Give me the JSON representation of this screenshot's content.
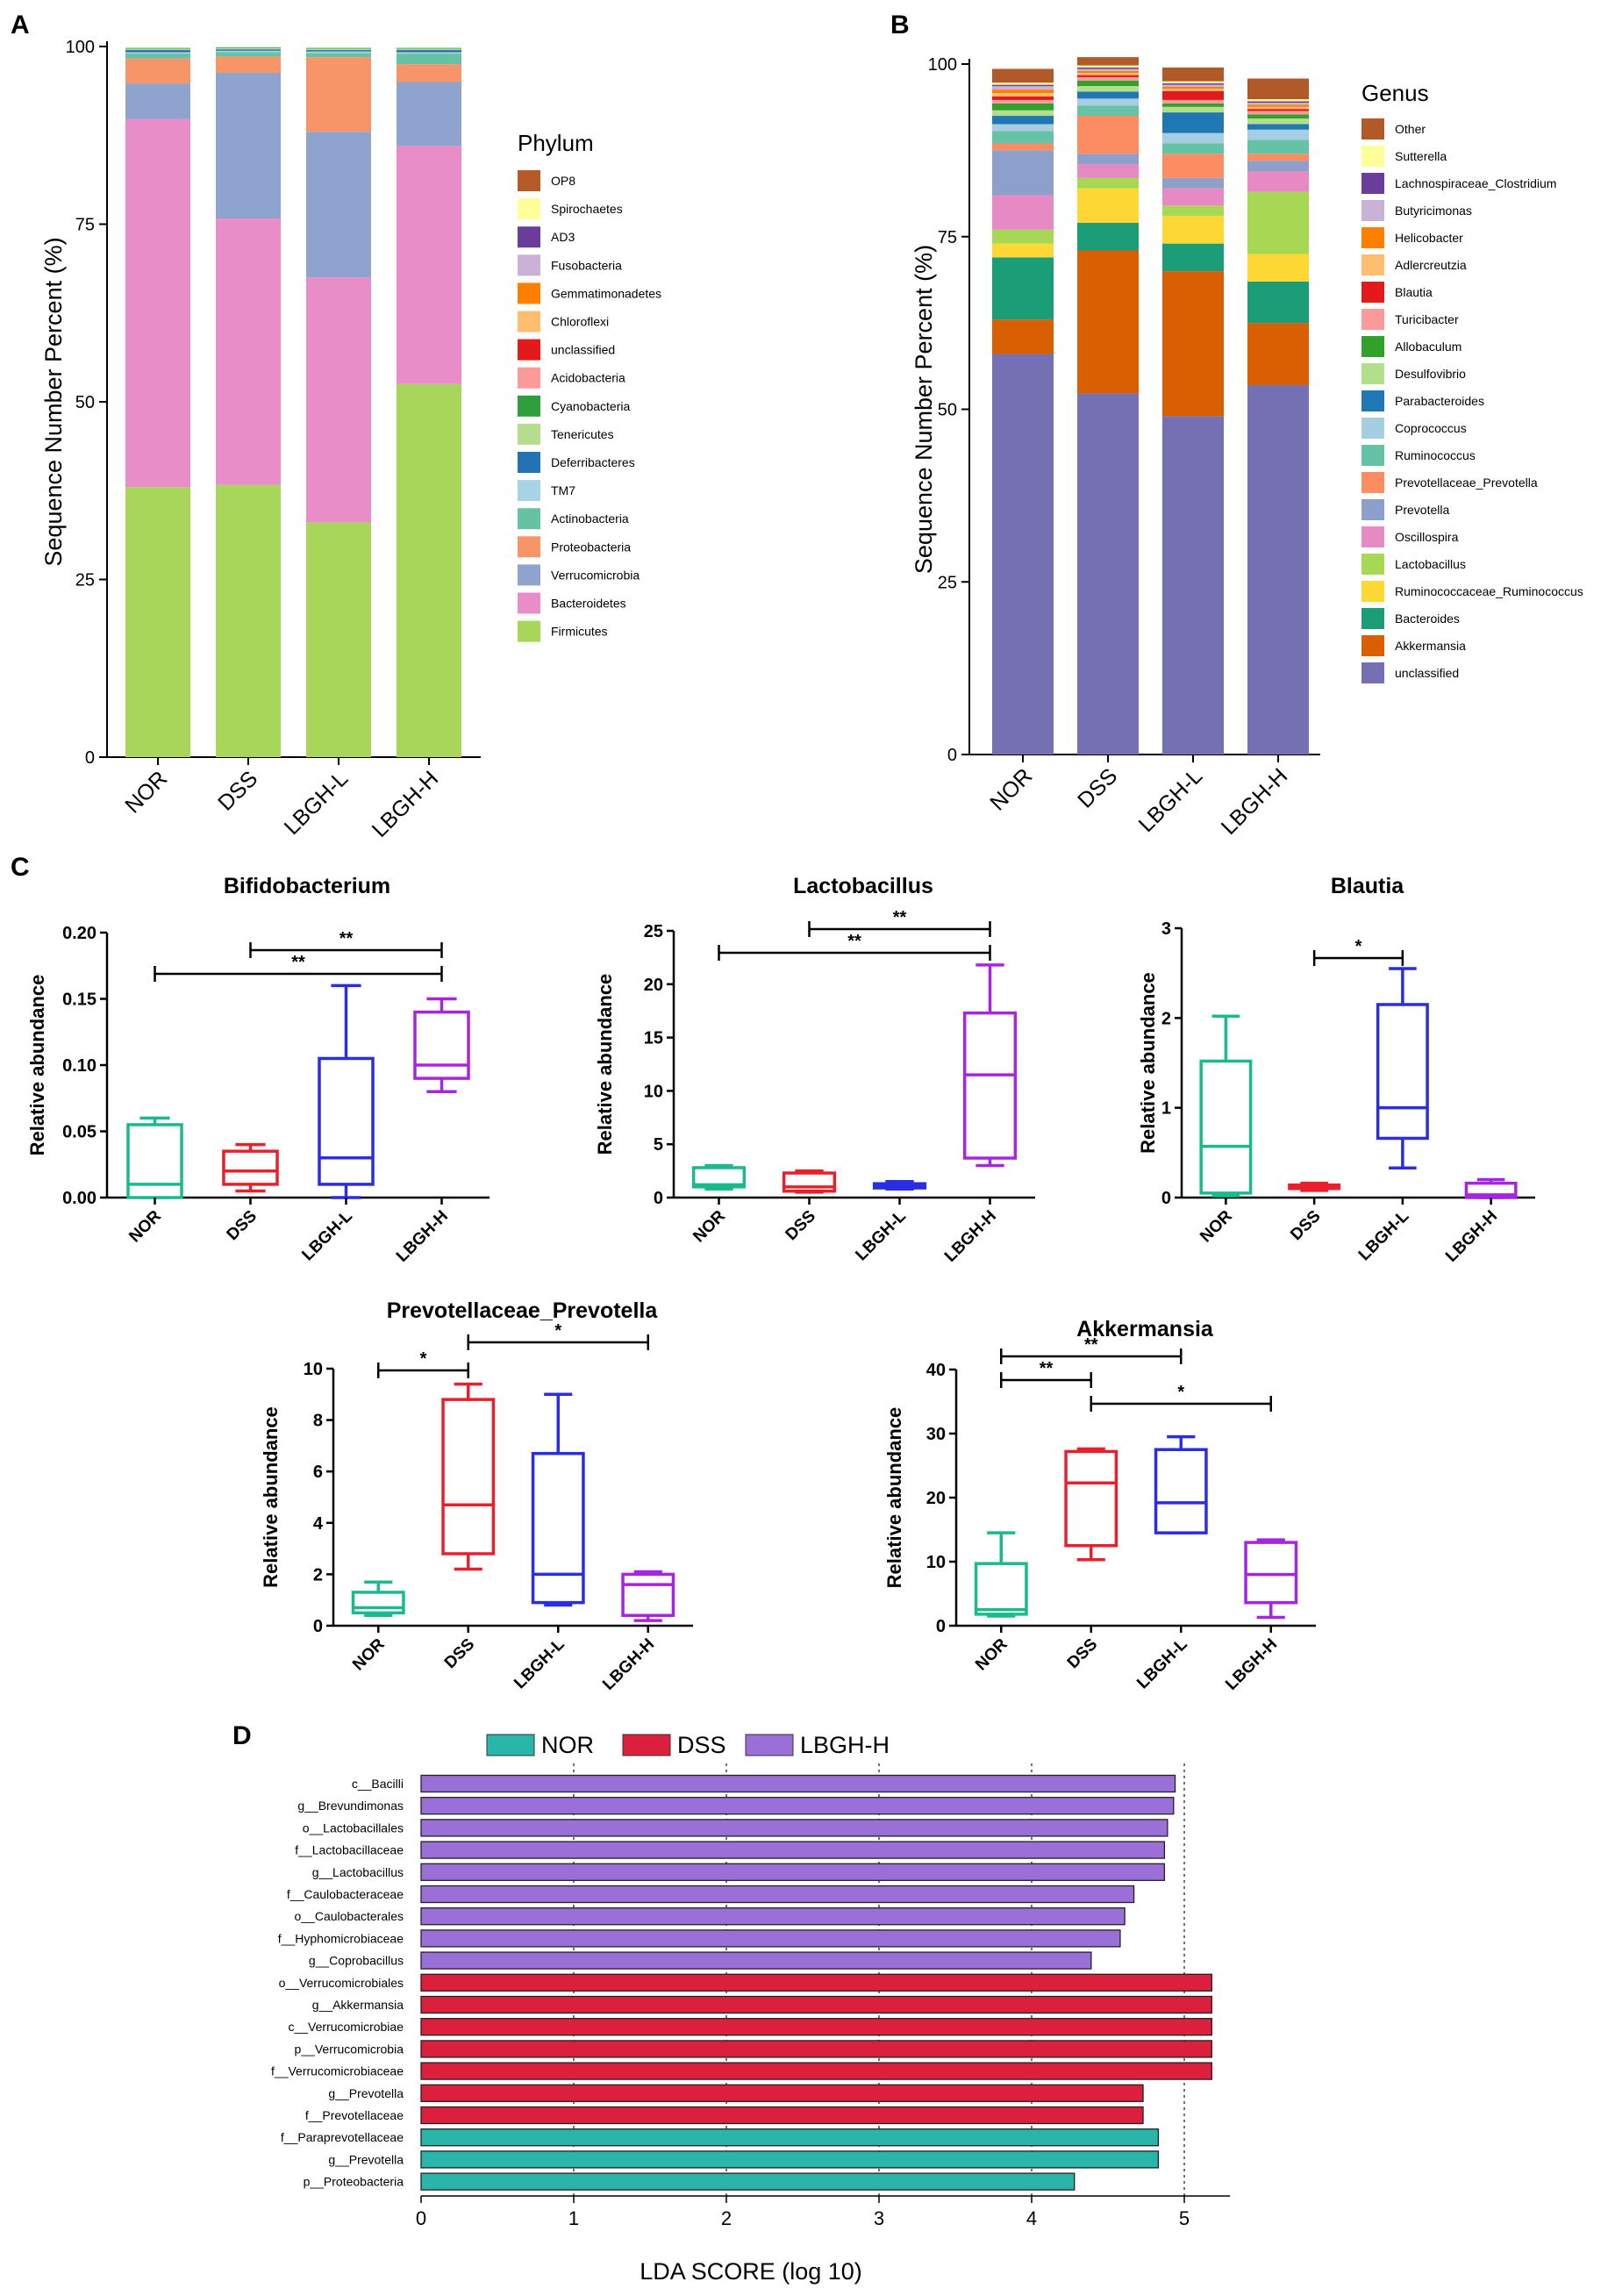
{
  "figure": {
    "panel_labels": [
      "A",
      "B",
      "C",
      "D"
    ]
  },
  "chart_data": [
    {
      "panel": "A",
      "type": "bar",
      "stacked": true,
      "categories": [
        "NOR",
        "DSS",
        "LBGH-L",
        "LBGH-H"
      ],
      "ylabel": "Sequence Number Percent (%)",
      "ylim": [
        0,
        100
      ],
      "yticks": [
        0,
        25,
        50,
        75,
        100
      ],
      "legend_title": "Phylum",
      "legend": [
        "OP8",
        "Spirochaetes",
        "AD3",
        "Fusobacteria",
        "Gemmatimonadetes",
        "Chloroflexi",
        "unclassified",
        "Acidobacteria",
        "Cyanobacteria",
        "Tenericutes",
        "Deferribacteres",
        "TM7",
        "Actinobacteria",
        "Proteobacteria",
        "Verrucomicrobia",
        "Bacteroidetes",
        "Firmicutes"
      ],
      "series": [
        {
          "name": "Firmicutes",
          "color": "#a8d65b",
          "values": [
            38,
            38.3,
            33,
            52.5
          ]
        },
        {
          "name": "Bacteroidetes",
          "color": "#e98dc8",
          "values": [
            51.8,
            37.5,
            34.5,
            33.5
          ]
        },
        {
          "name": "Verrucomicrobia",
          "color": "#8fa3cf",
          "values": [
            5,
            20.5,
            20.5,
            9
          ]
        },
        {
          "name": "Proteobacteria",
          "color": "#f79468",
          "values": [
            3.5,
            2.3,
            10.5,
            2.5
          ]
        },
        {
          "name": "Actinobacteria",
          "color": "#67c2a4",
          "values": [
            0.7,
            0.6,
            0.6,
            1.5
          ]
        },
        {
          "name": "TM7",
          "color": "#a8d3e6",
          "values": [
            0.2,
            0.2,
            0.2,
            0.2
          ]
        },
        {
          "name": "Deferribacteres",
          "color": "#2372b4",
          "values": [
            0.3,
            0.2,
            0.2,
            0.3
          ]
        },
        {
          "name": "Tenericutes",
          "color": "#b5dc8f",
          "values": [
            0.2,
            0.2,
            0.2,
            0.2
          ]
        },
        {
          "name": "Cyanobacteria",
          "color": "#2e9e3f",
          "values": [
            0.1,
            0.1,
            0.1,
            0.1
          ]
        }
      ]
    },
    {
      "panel": "B",
      "type": "bar",
      "stacked": true,
      "categories": [
        "NOR",
        "DSS",
        "LBGH-L",
        "LBGH-H"
      ],
      "ylabel": "Sequence Number Percent (%)",
      "ylim": [
        0,
        100
      ],
      "yticks": [
        0,
        25,
        50,
        75,
        100
      ],
      "legend_title": "Genus",
      "legend": [
        "Other",
        "Sutterella",
        "Lachnospiraceae_Clostridium",
        "Butyricimonas",
        "Helicobacter",
        "Adlercreutzia",
        "Blautia",
        "Turicibacter",
        "Allobaculum",
        "Desulfovibrio",
        "Parabacteroides",
        "Coprococcus",
        "Ruminococcus",
        "Prevotellaceae_Prevotella",
        "Prevotella",
        "Oscillospira",
        "Lactobacillus",
        "Ruminococcaceae_Ruminococcus",
        "Bacteroides",
        "Akkermansia",
        "unclassified"
      ],
      "series": [
        {
          "name": "unclassified",
          "color": "#7570b3",
          "values": [
            58,
            52.3,
            49,
            53.5
          ]
        },
        {
          "name": "Akkermansia",
          "color": "#d95f02",
          "values": [
            5,
            20.7,
            21,
            9
          ]
        },
        {
          "name": "Bacteroides",
          "color": "#1b9e77",
          "values": [
            9,
            4,
            4,
            6
          ]
        },
        {
          "name": "Ruminococcaceae_Ruminococcus",
          "color": "#fdd835",
          "values": [
            2,
            5,
            4,
            4
          ]
        },
        {
          "name": "Lactobacillus",
          "color": "#a6d854",
          "values": [
            2,
            1.5,
            1.5,
            9
          ]
        },
        {
          "name": "Oscillospira",
          "color": "#e78ac3",
          "values": [
            5,
            2,
            2.5,
            3
          ]
        },
        {
          "name": "Prevotella",
          "color": "#8da0cb",
          "values": [
            6.5,
            1.5,
            1.5,
            1.5
          ]
        },
        {
          "name": "Prevotellaceae_Prevotella",
          "color": "#fc8d62",
          "values": [
            1,
            5.5,
            3.5,
            1
          ]
        },
        {
          "name": "Ruminococcus",
          "color": "#66c2a5",
          "values": [
            1.8,
            1.5,
            1.5,
            2
          ]
        },
        {
          "name": "Coprococcus",
          "color": "#a6cee3",
          "values": [
            1,
            1,
            1.5,
            1.5
          ]
        },
        {
          "name": "Parabacteroides",
          "color": "#1f78b4",
          "values": [
            1.2,
            1,
            3,
            0.8
          ]
        },
        {
          "name": "Desulfovibrio",
          "color": "#b2df8a",
          "values": [
            0.8,
            0.8,
            0.8,
            0.8
          ]
        },
        {
          "name": "Allobaculum",
          "color": "#33a02c",
          "values": [
            1,
            0.8,
            0.5,
            0.6
          ]
        },
        {
          "name": "Turicibacter",
          "color": "#fb9a99",
          "values": [
            0.5,
            0.5,
            0.5,
            0.5
          ]
        },
        {
          "name": "Blautia",
          "color": "#e31a1c",
          "values": [
            0.5,
            0.3,
            1.3,
            0.3
          ]
        },
        {
          "name": "Adlercreutzia",
          "color": "#fdbf6f",
          "values": [
            0.5,
            0.3,
            0.3,
            0.3
          ]
        },
        {
          "name": "Helicobacter",
          "color": "#ff7f00",
          "values": [
            0.5,
            0.3,
            0.3,
            0.3
          ]
        },
        {
          "name": "Butyricimonas",
          "color": "#cab2d6",
          "values": [
            0.5,
            0.3,
            0.3,
            0.3
          ]
        },
        {
          "name": "Lachnospiraceae_Clostridium",
          "color": "#6a3d9a",
          "values": [
            0.2,
            0.2,
            0.2,
            0.2
          ]
        },
        {
          "name": "Sutterella",
          "color": "#ffff99",
          "values": [
            0.3,
            0.3,
            0.3,
            0.3
          ]
        },
        {
          "name": "Other",
          "color": "#b15928",
          "values": [
            2,
            1.2,
            2,
            3
          ]
        }
      ]
    },
    {
      "panel": "C",
      "type": "box",
      "title": "Bifidobacterium",
      "ylabel": "Relative abundance",
      "ylim": [
        0,
        0.2
      ],
      "yticks": [
        "0.00",
        "0.05",
        "0.10",
        "0.15",
        "0.20"
      ],
      "categories": [
        "NOR",
        "DSS",
        "LBGH-L",
        "LBGH-H"
      ],
      "boxes": [
        {
          "group": "NOR",
          "color": "#1ab98e",
          "min": 0,
          "q1": 0,
          "median": 0.01,
          "q3": 0.055,
          "max": 0.06
        },
        {
          "group": "DSS",
          "color": "#e8202b",
          "min": 0.005,
          "q1": 0.01,
          "median": 0.02,
          "q3": 0.035,
          "max": 0.04
        },
        {
          "group": "LBGH-L",
          "color": "#2a2ee0",
          "min": 0,
          "q1": 0.01,
          "median": 0.03,
          "q3": 0.105,
          "max": 0.16
        },
        {
          "group": "LBGH-H",
          "color": "#a626e0",
          "min": 0.08,
          "q1": 0.09,
          "median": 0.1,
          "q3": 0.14,
          "max": 0.15
        }
      ],
      "significance": [
        {
          "from": "DSS",
          "to": "LBGH-H",
          "label": "**",
          "level": 1
        },
        {
          "from": "NOR",
          "to": "LBGH-H",
          "label": "**",
          "level": 0
        }
      ]
    },
    {
      "panel": "C",
      "type": "box",
      "title": "Lactobacillus",
      "ylabel": "Relative abundance",
      "ylim": [
        0,
        25
      ],
      "yticks": [
        "0",
        "5",
        "10",
        "15",
        "20",
        "25"
      ],
      "categories": [
        "NOR",
        "DSS",
        "LBGH-L",
        "LBGH-H"
      ],
      "boxes": [
        {
          "group": "NOR",
          "color": "#1ab98e",
          "min": 0.8,
          "q1": 1,
          "median": 1.2,
          "q3": 2.8,
          "max": 3
        },
        {
          "group": "DSS",
          "color": "#e8202b",
          "min": 0.5,
          "q1": 0.6,
          "median": 1,
          "q3": 2.3,
          "max": 2.5
        },
        {
          "group": "LBGH-L",
          "color": "#2a2ee0",
          "min": 0.8,
          "q1": 0.9,
          "median": 1.1,
          "q3": 1.3,
          "max": 1.5
        },
        {
          "group": "LBGH-H",
          "color": "#a626e0",
          "min": 3,
          "q1": 3.7,
          "median": 11.5,
          "q3": 17.3,
          "max": 21.8
        }
      ],
      "significance": [
        {
          "from": "DSS",
          "to": "LBGH-H",
          "label": "**",
          "level": 1
        },
        {
          "from": "NOR",
          "to": "LBGH-H",
          "label": "**",
          "level": 0
        }
      ]
    },
    {
      "panel": "C",
      "type": "box",
      "title": "Blautia",
      "ylabel": "Relative abundance",
      "ylim": [
        0,
        3
      ],
      "yticks": [
        "0",
        "1",
        "2",
        "3"
      ],
      "categories": [
        "NOR",
        "DSS",
        "LBGH-L",
        "LBGH-H"
      ],
      "boxes": [
        {
          "group": "NOR",
          "color": "#1ab98e",
          "min": 0.02,
          "q1": 0.05,
          "median": 0.57,
          "q3": 1.52,
          "max": 2.02
        },
        {
          "group": "DSS",
          "color": "#e8202b",
          "min": 0.08,
          "q1": 0.1,
          "median": 0.12,
          "q3": 0.14,
          "max": 0.16
        },
        {
          "group": "LBGH-L",
          "color": "#2a2ee0",
          "min": 0.33,
          "q1": 0.66,
          "median": 1,
          "q3": 2.15,
          "max": 2.55
        },
        {
          "group": "LBGH-H",
          "color": "#a626e0",
          "min": 0,
          "q1": 0,
          "median": 0.03,
          "q3": 0.16,
          "max": 0.2
        }
      ],
      "significance": [
        {
          "from": "DSS",
          "to": "LBGH-L",
          "label": "*",
          "level": 0
        }
      ]
    },
    {
      "panel": "C",
      "type": "box",
      "title": "Prevotellaceae_Prevotella",
      "ylabel": "Relative abundance",
      "ylim": [
        0,
        10
      ],
      "yticks": [
        "0",
        "2",
        "4",
        "6",
        "8",
        "10"
      ],
      "categories": [
        "NOR",
        "DSS",
        "LBGH-L",
        "LBGH-H"
      ],
      "boxes": [
        {
          "group": "NOR",
          "color": "#1ab98e",
          "min": 0.4,
          "q1": 0.5,
          "median": 0.7,
          "q3": 1.3,
          "max": 1.7
        },
        {
          "group": "DSS",
          "color": "#e8202b",
          "min": 2.2,
          "q1": 2.8,
          "median": 4.7,
          "q3": 8.8,
          "max": 9.4
        },
        {
          "group": "LBGH-L",
          "color": "#2a2ee0",
          "min": 0.8,
          "q1": 0.9,
          "median": 2,
          "q3": 6.7,
          "max": 9
        },
        {
          "group": "LBGH-H",
          "color": "#a626e0",
          "min": 0.2,
          "q1": 0.4,
          "median": 1.6,
          "q3": 2,
          "max": 2.1
        }
      ],
      "significance": [
        {
          "from": "NOR",
          "to": "DSS",
          "label": "*",
          "level": 0
        },
        {
          "from": "DSS",
          "to": "LBGH-H",
          "label": "*",
          "level": 1
        }
      ]
    },
    {
      "panel": "C",
      "type": "box",
      "title": "Akkermansia",
      "ylabel": "Relative abundance",
      "ylim": [
        0,
        40
      ],
      "yticks": [
        "0",
        "10",
        "20",
        "30",
        "40"
      ],
      "categories": [
        "NOR",
        "DSS",
        "LBGH-L",
        "LBGH-H"
      ],
      "boxes": [
        {
          "group": "NOR",
          "color": "#1ab98e",
          "min": 1.5,
          "q1": 1.8,
          "median": 2.5,
          "q3": 9.7,
          "max": 14.5
        },
        {
          "group": "DSS",
          "color": "#e8202b",
          "min": 10.3,
          "q1": 12.5,
          "median": 22.3,
          "q3": 27.2,
          "max": 27.6
        },
        {
          "group": "LBGH-L",
          "color": "#2a2ee0",
          "min": 14.5,
          "q1": 14.5,
          "median": 19.2,
          "q3": 27.5,
          "max": 29.5
        },
        {
          "group": "LBGH-H",
          "color": "#a626e0",
          "min": 1.3,
          "q1": 3.6,
          "median": 8,
          "q3": 13,
          "max": 13.4
        }
      ],
      "significance": [
        {
          "from": "NOR",
          "to": "LBGH-L",
          "label": "**",
          "level": 2
        },
        {
          "from": "NOR",
          "to": "DSS",
          "label": "**",
          "level": 1
        },
        {
          "from": "DSS",
          "to": "LBGH-H",
          "label": "*",
          "level": 0
        }
      ]
    },
    {
      "panel": "D",
      "type": "bar",
      "orientation": "horizontal",
      "xlabel": "LDA SCORE (log 10)",
      "xlim": [
        0,
        5.3
      ],
      "xticks": [
        "0",
        "1",
        "2",
        "3",
        "4",
        "5"
      ],
      "legend": [
        {
          "name": "NOR",
          "color": "#2ab5aa"
        },
        {
          "name": "DSS",
          "color": "#dc1f3c"
        },
        {
          "name": "LBGH-H",
          "color": "#9b6fd8"
        }
      ],
      "categories": [
        "c__Bacilli",
        "g__Brevundimonas",
        "o__Lactobacillales",
        "f__Lactobacillaceae",
        "g__Lactobacillus",
        "f__Caulobacteraceae",
        "o__Caulobacterales",
        "f__Hyphomicrobiaceae",
        "g__Coprobacillus",
        "o__Verrucomicrobiales",
        "g__Akkermansia",
        "c__Verrucomicrobiae",
        "p__Verrucomicrobia",
        "f__Verrucomicrobiaceae",
        "g__Prevotella",
        "f__Prevotellaceae",
        "f__Paraprevotellaceae",
        "g__Prevotella",
        "p__Proteobacteria"
      ],
      "values": [
        4.94,
        4.93,
        4.89,
        4.87,
        4.87,
        4.67,
        4.61,
        4.58,
        4.39,
        5.18,
        5.18,
        5.18,
        5.18,
        5.18,
        4.73,
        4.73,
        4.83,
        4.83,
        4.28
      ],
      "groups": [
        "LBGH-H",
        "LBGH-H",
        "LBGH-H",
        "LBGH-H",
        "LBGH-H",
        "LBGH-H",
        "LBGH-H",
        "LBGH-H",
        "LBGH-H",
        "DSS",
        "DSS",
        "DSS",
        "DSS",
        "DSS",
        "DSS",
        "DSS",
        "NOR",
        "NOR",
        "NOR"
      ]
    }
  ]
}
